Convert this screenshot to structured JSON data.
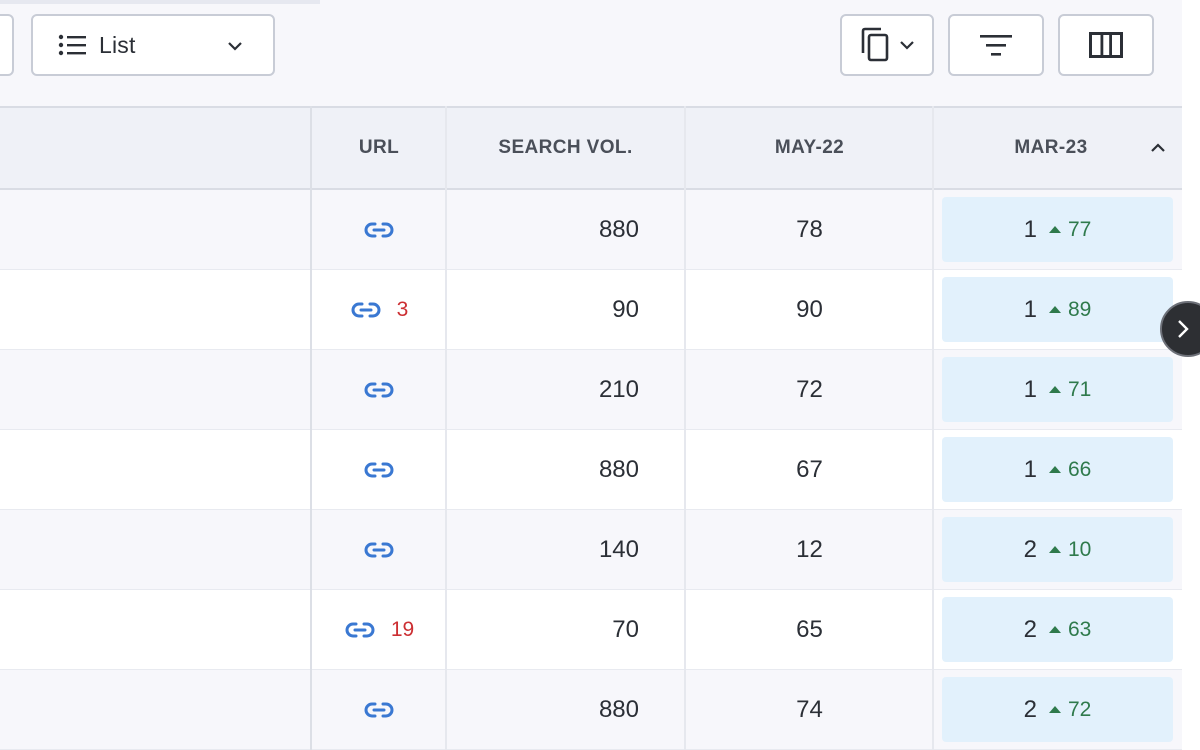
{
  "toolbar": {
    "view_select": {
      "label": "List",
      "icon": "list-icon"
    },
    "copy_button": {
      "icon": "copy-icon"
    },
    "filter_button": {
      "icon": "filter-icon"
    },
    "columns_button": {
      "icon": "columns-icon"
    }
  },
  "table": {
    "columns": {
      "url": "URL",
      "search_vol": "SEARCH VOL.",
      "may22": "MAY-22",
      "mar23": "MAR-23"
    },
    "rows": [
      {
        "url_count": "",
        "search_vol": "880",
        "may22": "78",
        "rank": "1",
        "delta": "77"
      },
      {
        "url_count": "3",
        "search_vol": "90",
        "may22": "90",
        "rank": "1",
        "delta": "89"
      },
      {
        "url_count": "",
        "search_vol": "210",
        "may22": "72",
        "rank": "1",
        "delta": "71"
      },
      {
        "url_count": "",
        "search_vol": "880",
        "may22": "67",
        "rank": "1",
        "delta": "66"
      },
      {
        "url_count": "",
        "search_vol": "140",
        "may22": "12",
        "rank": "2",
        "delta": "10"
      },
      {
        "url_count": "19",
        "search_vol": "70",
        "may22": "65",
        "rank": "2",
        "delta": "63"
      },
      {
        "url_count": "",
        "search_vol": "880",
        "may22": "74",
        "rank": "2",
        "delta": "72"
      }
    ]
  },
  "colors": {
    "link": "#3a78d2",
    "url_count": "#cc2f33",
    "delta_up": "#2f7a4c",
    "rank_highlight": "#e2f1fc"
  }
}
